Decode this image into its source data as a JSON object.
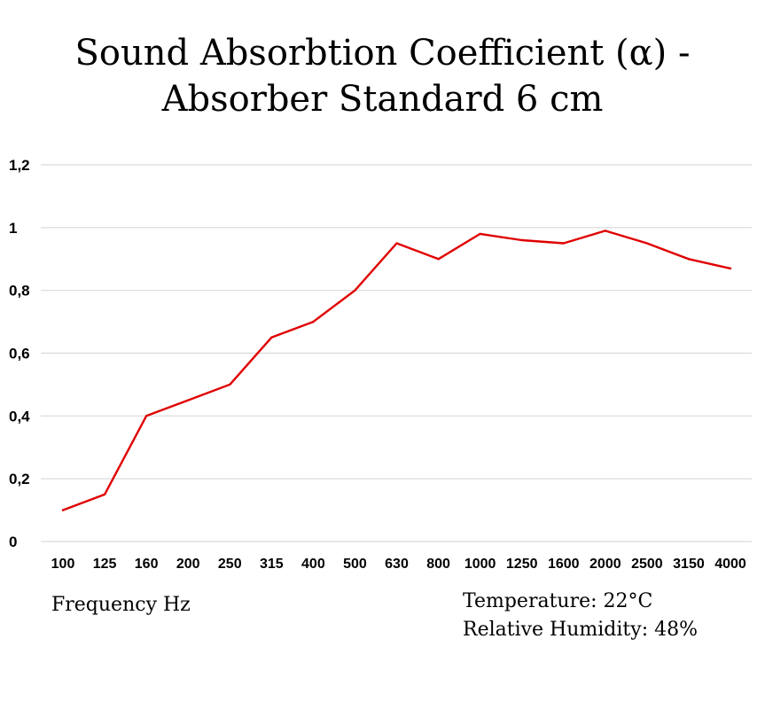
{
  "chart_data": {
    "type": "line",
    "title_lines": [
      "Sound Absorbtion Coefficient (α) -",
      "Absorber Standard 6 cm"
    ],
    "xlabel": "Frequency Hz",
    "categories": [
      "100",
      "125",
      "160",
      "200",
      "250",
      "315",
      "400",
      "500",
      "630",
      "800",
      "1000",
      "1250",
      "1600",
      "2000",
      "2500",
      "3150",
      "4000"
    ],
    "series": [
      {
        "values": [
          0.1,
          0.15,
          0.4,
          0.45,
          0.5,
          0.65,
          0.7,
          0.8,
          0.95,
          0.9,
          0.98,
          0.96,
          0.95,
          0.99,
          0.95,
          0.9,
          0.87
        ]
      }
    ],
    "ylim": [
      0,
      1.2
    ],
    "yticks": [
      0,
      0.2,
      0.4,
      0.6,
      0.8,
      1,
      1.2
    ],
    "ytick_labels": [
      "0",
      "0,2",
      "0,4",
      "0,6",
      "0,8",
      "1",
      "1,2"
    ],
    "grid": true,
    "line_color": "#e00000",
    "grid_color": "#d9d9d9"
  },
  "notes": {
    "temperature": "Temperature: 22°C",
    "humidity": "Relative Humidity: 48%"
  }
}
